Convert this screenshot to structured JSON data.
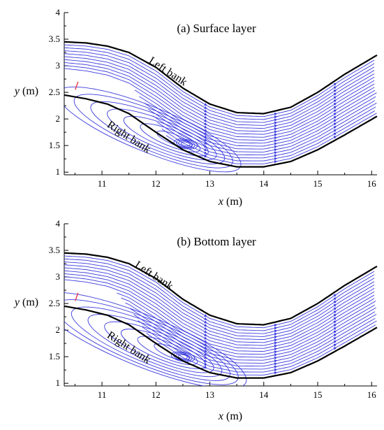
{
  "chart_data": [
    {
      "type": "streamline",
      "title": "(a) Surface layer",
      "xlabel_var": "x",
      "xlabel_unit": " (m)",
      "ylabel_var": "y",
      "ylabel_unit": " (m)",
      "xlim": [
        10.3,
        16.1
      ],
      "ylim": [
        0.95,
        4.0
      ],
      "xticks": [
        11,
        12,
        13,
        14,
        15,
        16
      ],
      "yticks": [
        1,
        1.5,
        2,
        2.5,
        3,
        3.5,
        4
      ],
      "left_bank_label": "Left bank",
      "right_bank_label": "Right bank",
      "left_bank": [
        [
          10.3,
          3.45
        ],
        [
          10.7,
          3.43
        ],
        [
          11.1,
          3.37
        ],
        [
          11.5,
          3.25
        ],
        [
          12.0,
          2.97
        ],
        [
          12.5,
          2.58
        ],
        [
          13.0,
          2.28
        ],
        [
          13.5,
          2.12
        ],
        [
          14.0,
          2.1
        ],
        [
          14.5,
          2.22
        ],
        [
          15.0,
          2.5
        ],
        [
          15.5,
          2.84
        ],
        [
          16.1,
          3.2
        ]
      ],
      "right_bank": [
        [
          10.3,
          2.45
        ],
        [
          10.7,
          2.38
        ],
        [
          11.1,
          2.28
        ],
        [
          11.5,
          2.1
        ],
        [
          12.0,
          1.75
        ],
        [
          12.5,
          1.42
        ],
        [
          13.0,
          1.2
        ],
        [
          13.5,
          1.1
        ],
        [
          14.0,
          1.1
        ],
        [
          14.5,
          1.2
        ],
        [
          15.0,
          1.42
        ],
        [
          15.5,
          1.7
        ],
        [
          16.1,
          2.05
        ]
      ],
      "recirculation_center": [
        12.55,
        1.53
      ],
      "colors": {
        "streamline": "#3b3bdf",
        "bank": "#000000",
        "inlet_marker": "#e8334a"
      }
    },
    {
      "type": "streamline",
      "title": "(b) Bottom layer",
      "xlabel_var": "x",
      "xlabel_unit": " (m)",
      "ylabel_var": "y",
      "ylabel_unit": " (m)",
      "xlim": [
        10.3,
        16.1
      ],
      "ylim": [
        0.95,
        4.0
      ],
      "xticks": [
        11,
        12,
        13,
        14,
        15,
        16
      ],
      "yticks": [
        1,
        1.5,
        2,
        2.5,
        3,
        3.5,
        4
      ],
      "left_bank_label": "Left bank",
      "right_bank_label": "Right bank",
      "left_bank": [
        [
          10.3,
          3.45
        ],
        [
          10.7,
          3.43
        ],
        [
          11.1,
          3.37
        ],
        [
          11.5,
          3.25
        ],
        [
          12.0,
          2.97
        ],
        [
          12.5,
          2.58
        ],
        [
          13.0,
          2.28
        ],
        [
          13.5,
          2.12
        ],
        [
          14.0,
          2.1
        ],
        [
          14.5,
          2.22
        ],
        [
          15.0,
          2.5
        ],
        [
          15.5,
          2.84
        ],
        [
          16.1,
          3.2
        ]
      ],
      "right_bank": [
        [
          10.3,
          2.45
        ],
        [
          10.7,
          2.38
        ],
        [
          11.1,
          2.28
        ],
        [
          11.5,
          2.1
        ],
        [
          12.0,
          1.75
        ],
        [
          12.5,
          1.42
        ],
        [
          13.0,
          1.2
        ],
        [
          13.5,
          1.1
        ],
        [
          14.0,
          1.1
        ],
        [
          14.5,
          1.2
        ],
        [
          15.0,
          1.42
        ],
        [
          15.5,
          1.7
        ],
        [
          16.1,
          2.05
        ]
      ],
      "recirculation_center": [
        12.5,
        1.5
      ],
      "colors": {
        "streamline": "#3b3bdf",
        "bank": "#000000",
        "inlet_marker": "#e8334a"
      }
    }
  ]
}
